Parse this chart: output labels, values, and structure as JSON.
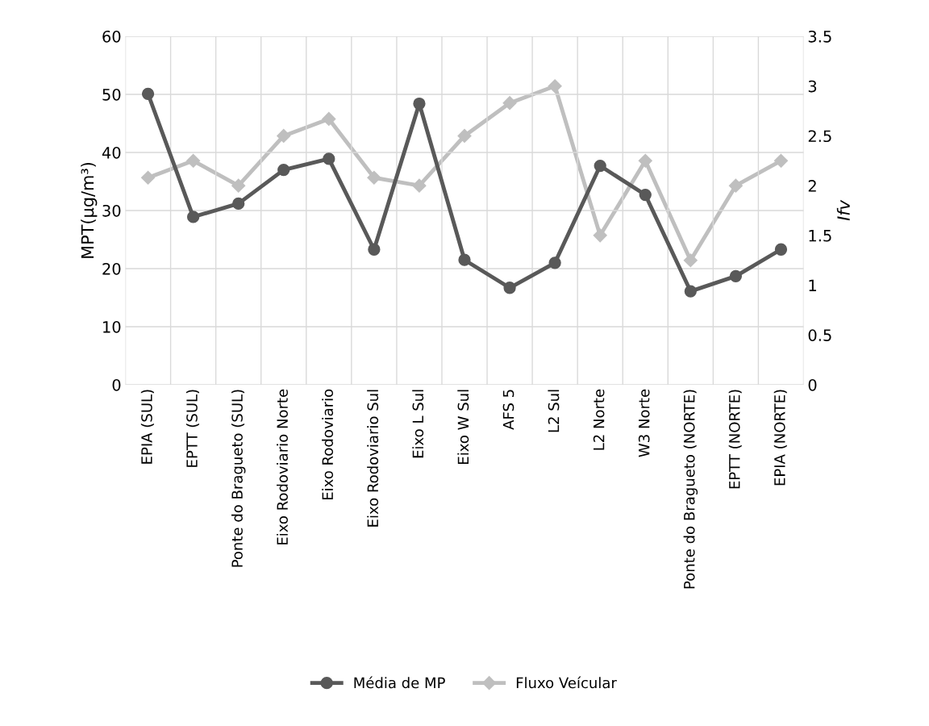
{
  "chart_data": {
    "type": "line",
    "categories": [
      "EPIA (SUL)",
      "EPTT (SUL)",
      "Ponte do Bragueto (SUL)",
      "Eixo Rodoviario Norte",
      "Eixo Rodoviario",
      "Eixo Rodoviario Sul",
      "Eixo L Sul",
      "Eixo W Sul",
      "AFS 5",
      "L2 Sul",
      "L2 Norte",
      "W3 Norte",
      "Ponte do Bragueto (NORTE)",
      "EPTT (NORTE)",
      "EPIA (NORTE)"
    ],
    "series": [
      {
        "name": "Média de MP",
        "color": "#595959",
        "marker": "circle",
        "values": [
          50.1,
          28.9,
          31.2,
          37.0,
          38.9,
          23.3,
          48.4,
          21.5,
          16.7,
          21.0,
          37.7,
          32.7,
          16.1,
          18.7,
          23.3
        ]
      },
      {
        "name": "Fluxo Veícular",
        "color": "#bfbfbf",
        "marker": "diamond",
        "axis": "y2",
        "values": [
          2.08,
          2.25,
          2.0,
          2.5,
          2.67,
          2.08,
          2.0,
          2.5,
          2.83,
          3.0,
          1.5,
          2.25,
          1.25,
          2.0,
          2.25
        ]
      }
    ],
    "ylabel": "MPT(μg/m³)",
    "y2label": "Ifv",
    "ylim": [
      0,
      60
    ],
    "yticks": [
      0,
      10,
      20,
      30,
      40,
      50,
      60
    ],
    "y2lim": [
      0,
      3.5
    ],
    "y2ticks": [
      0,
      0.5,
      1,
      1.5,
      2,
      2.5,
      3,
      3.5
    ],
    "grid": true,
    "legend": "bottom"
  }
}
